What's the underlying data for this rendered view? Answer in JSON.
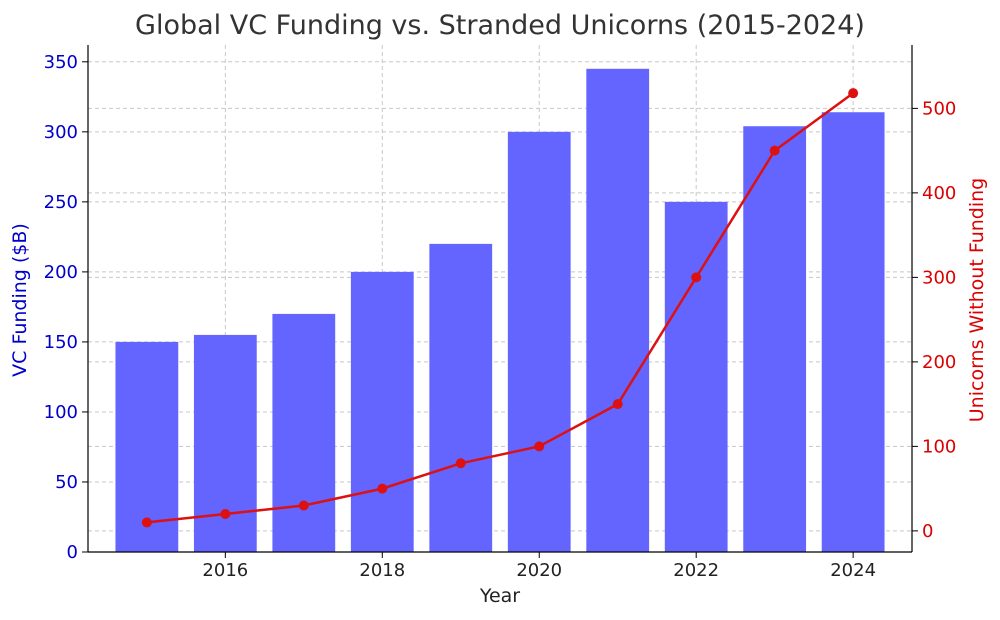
{
  "chart_data": {
    "type": "bar+line",
    "title": "Global VC Funding vs. Stranded Unicorns (2015-2024)",
    "xlabel": "Year",
    "x": [
      2015,
      2016,
      2017,
      2018,
      2019,
      2020,
      2021,
      2022,
      2023,
      2024
    ],
    "x_ticks": [
      "2016",
      "2018",
      "2020",
      "2022",
      "2024"
    ],
    "left_axis": {
      "label": "VC Funding ($B)",
      "color": "#0000cc",
      "ylim": [
        0,
        362
      ],
      "ticks": [
        0,
        50,
        100,
        150,
        200,
        250,
        300,
        350
      ]
    },
    "right_axis": {
      "label": "Unicorns Without Funding",
      "color": "#dd0000",
      "ylim": [
        -25,
        575
      ],
      "ticks": [
        0,
        100,
        200,
        300,
        400,
        500
      ]
    },
    "series": [
      {
        "type": "bar",
        "axis": "left",
        "color": "#6464ff",
        "values": [
          150,
          155,
          170,
          200,
          220,
          300,
          345,
          250,
          304,
          314
        ]
      },
      {
        "type": "line",
        "axis": "right",
        "color": "#dd1111",
        "values": [
          10,
          20,
          30,
          50,
          80,
          100,
          150,
          300,
          450,
          518
        ]
      }
    ],
    "grid": true
  }
}
